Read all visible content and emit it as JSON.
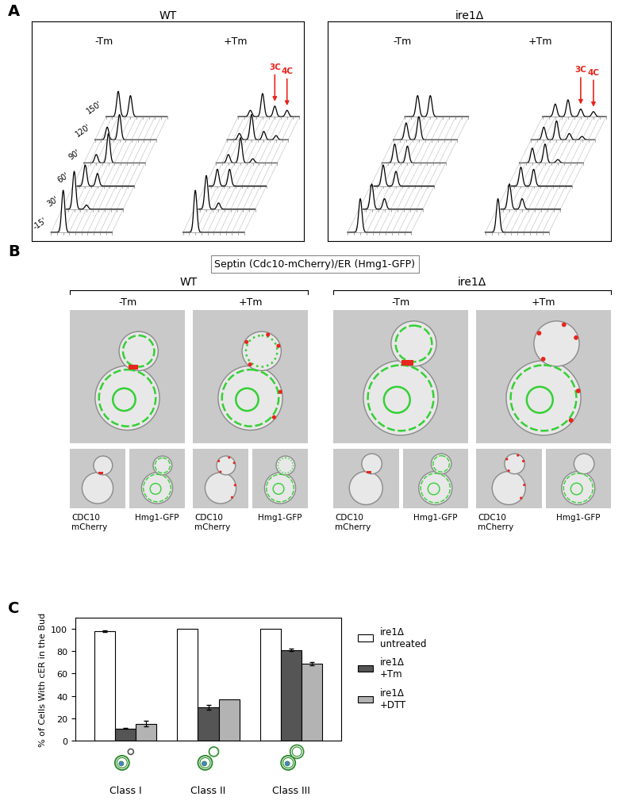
{
  "panel_a": {
    "label": "A",
    "xlim": [
      0,
      5
    ],
    "tick_labels": false,
    "strains": [
      {
        "title": "WT",
        "conditions": [
          {
            "name": "-Tm",
            "time_labels": [
              "-15'",
              "30'",
              "60'",
              "90'",
              "120'",
              "150'"
            ],
            "traces": [
              [
                [
                  1,
                  1.0
                ]
              ],
              [
                [
                  1,
                  0.9
                ],
                [
                  2,
                  0.1
                ]
              ],
              [
                [
                  1,
                  0.5
                ],
                [
                  2,
                  0.3
                ]
              ],
              [
                [
                  1,
                  0.2
                ],
                [
                  2,
                  0.7
                ]
              ],
              [
                [
                  1,
                  0.3
                ],
                [
                  2,
                  0.6
                ]
              ],
              [
                [
                  1,
                  0.6
                ],
                [
                  2,
                  0.5
                ]
              ]
            ]
          },
          {
            "name": "+Tm",
            "arrows": [
              {
                "label": "3C",
                "dna": 3
              },
              {
                "label": "4C",
                "dna": 4
              }
            ],
            "color": "#e8261c",
            "traces": [
              [
                [
                  1,
                  1.0
                ]
              ],
              [
                [
                  1,
                  0.8
                ],
                [
                  2,
                  0.15
                ]
              ],
              [
                [
                  1,
                  0.4
                ],
                [
                  2,
                  0.4
                ]
              ],
              [
                [
                  1,
                  0.2
                ],
                [
                  2,
                  0.6
                ],
                [
                  3,
                  0.1
                ]
              ],
              [
                [
                  1,
                  0.15
                ],
                [
                  2,
                  0.6
                ],
                [
                  3,
                  0.2
                ],
                [
                  4,
                  0.1
                ]
              ],
              [
                [
                  1,
                  0.15
                ],
                [
                  2,
                  0.55
                ],
                [
                  3,
                  0.25
                ],
                [
                  4,
                  0.15
                ]
              ]
            ]
          }
        ]
      },
      {
        "title": "ire1Δ",
        "conditions": [
          {
            "name": "-Tm",
            "traces": [
              [
                [
                  1,
                  0.8
                ]
              ],
              [
                [
                  1,
                  0.6
                ],
                [
                  2,
                  0.25
                ]
              ],
              [
                [
                  1,
                  0.5
                ],
                [
                  2,
                  0.35
                ]
              ],
              [
                [
                  1,
                  0.45
                ],
                [
                  2,
                  0.4
                ]
              ],
              [
                [
                  1,
                  0.4
                ],
                [
                  2,
                  0.55
                ]
              ],
              [
                [
                  1,
                  0.5
                ],
                [
                  2,
                  0.5
                ]
              ]
            ]
          },
          {
            "name": "+Tm",
            "arrows": [
              {
                "label": "3C",
                "dna": 3
              },
              {
                "label": "4C",
                "dna": 4
              }
            ],
            "color": "#e8261c",
            "traces": [
              [
                [
                  1,
                  0.8
                ]
              ],
              [
                [
                  1,
                  0.6
                ],
                [
                  2,
                  0.25
                ]
              ],
              [
                [
                  1,
                  0.45
                ],
                [
                  2,
                  0.4
                ]
              ],
              [
                [
                  1,
                  0.35
                ],
                [
                  2,
                  0.45
                ],
                [
                  3,
                  0.08
                ]
              ],
              [
                [
                  1,
                  0.3
                ],
                [
                  2,
                  0.45
                ],
                [
                  3,
                  0.15
                ],
                [
                  4,
                  0.08
                ]
              ],
              [
                [
                  1,
                  0.3
                ],
                [
                  2,
                  0.4
                ],
                [
                  3,
                  0.18
                ],
                [
                  4,
                  0.12
                ]
              ]
            ]
          }
        ]
      }
    ]
  },
  "panel_b": {
    "label": "B",
    "heading": "Septin (Cdc10-mCherry)/ER (Hmg1-GFP)",
    "groups": [
      {
        "title": "WT",
        "conditions": [
          {
            "name": "-Tm",
            "channels": [
              "CDC10\nmCherry",
              "Hmg1-GFP"
            ]
          },
          {
            "name": "+Tm",
            "channels": [
              "CDC10\nmCherry",
              "Hmg1-GFP"
            ]
          }
        ]
      },
      {
        "title": "ire1Δ",
        "conditions": [
          {
            "name": "-Tm",
            "channels": [
              "CDC10\nmCherry",
              "Hmg1-GFP"
            ]
          },
          {
            "name": "+Tm",
            "channels": [
              "CDC10\nmCherry",
              "Hmg1-GFP"
            ]
          }
        ]
      }
    ]
  },
  "chart_data": {
    "type": "bar",
    "label": "C",
    "ylabel": "% of Cells With cER in the Bud",
    "categories": [
      "Class I",
      "Class II",
      "Class III"
    ],
    "series": [
      {
        "name": "ire1Δ\nuntreated",
        "color": "#ffffff",
        "values": [
          98,
          100,
          100
        ],
        "errors": [
          1.0,
          null,
          null
        ]
      },
      {
        "name": "ire1Δ\n+Tm",
        "color": "#555555",
        "values": [
          11,
          30,
          81
        ],
        "errors": [
          0.5,
          2.0,
          1.0
        ]
      },
      {
        "name": "ire1Δ\n+DTT",
        "color": "#b3b3b3",
        "values": [
          15,
          37,
          69
        ],
        "errors": [
          2.5,
          null,
          1.5
        ]
      }
    ],
    "ylim": [
      0,
      110
    ],
    "yticks": [
      0,
      20,
      40,
      60,
      80,
      100
    ],
    "legend": "upper left",
    "grid": false
  }
}
